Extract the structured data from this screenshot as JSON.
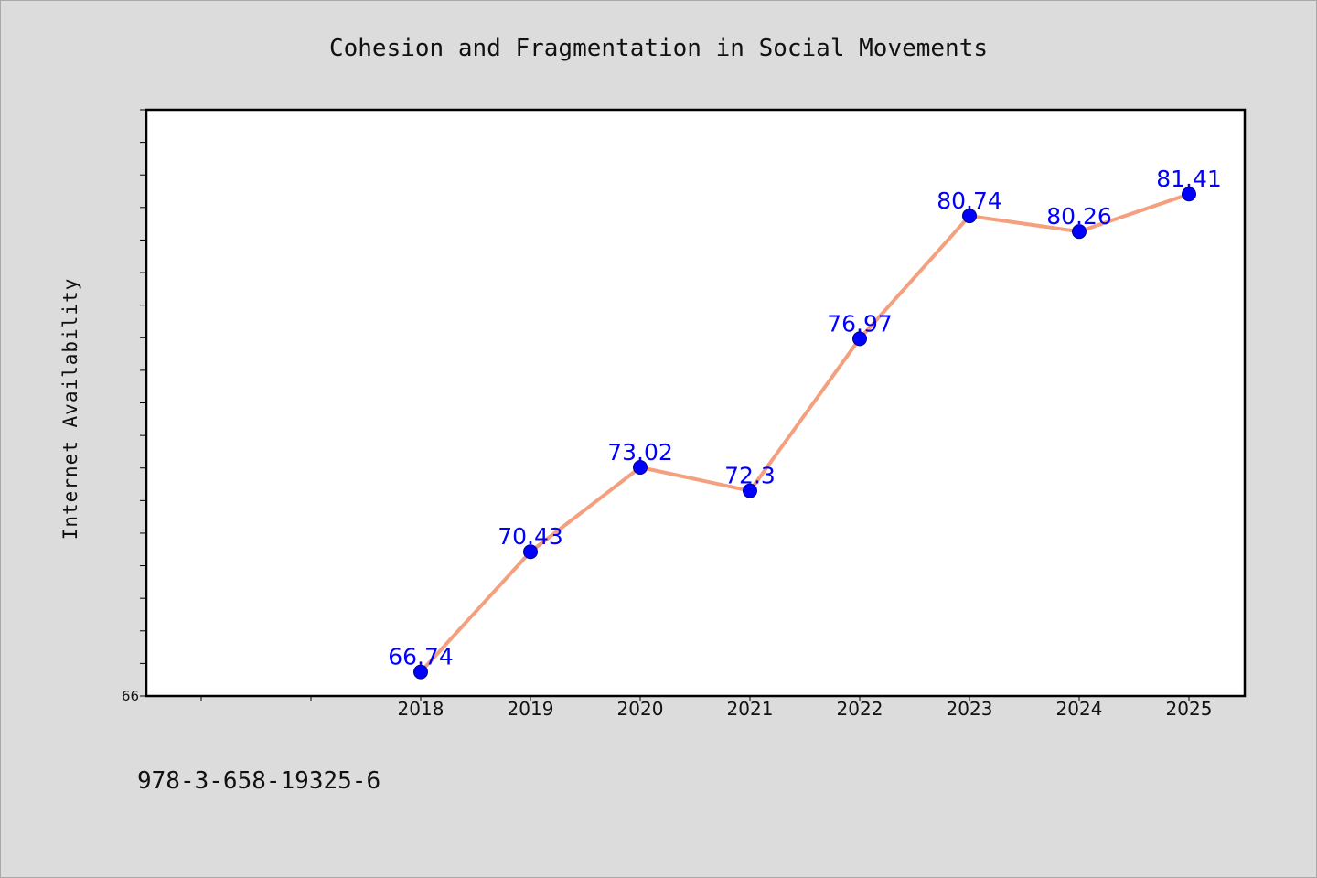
{
  "chart_data": {
    "type": "line",
    "title": "Cohesion and Fragmentation in Social Movements",
    "ylabel": "Internet Availability",
    "xlabel": "",
    "categories": [
      "2018",
      "2019",
      "2020",
      "2021",
      "2022",
      "2023",
      "2024",
      "2025"
    ],
    "values": [
      66.74,
      70.43,
      73.02,
      72.3,
      76.97,
      80.74,
      80.26,
      81.41
    ],
    "data_labels": [
      "66.74",
      "70.43",
      "73.02",
      "72.3",
      "76.97",
      "80.74",
      "80.26",
      "81.41"
    ],
    "ylim": [
      66.0,
      84.0
    ],
    "y_tick_labels": [
      "66"
    ],
    "line_color": "#f4a07f",
    "marker_color": "#0000ff",
    "label_color": "#0000ff",
    "grid": false
  },
  "footer": {
    "isbn": "978-3-658-19325-6"
  }
}
